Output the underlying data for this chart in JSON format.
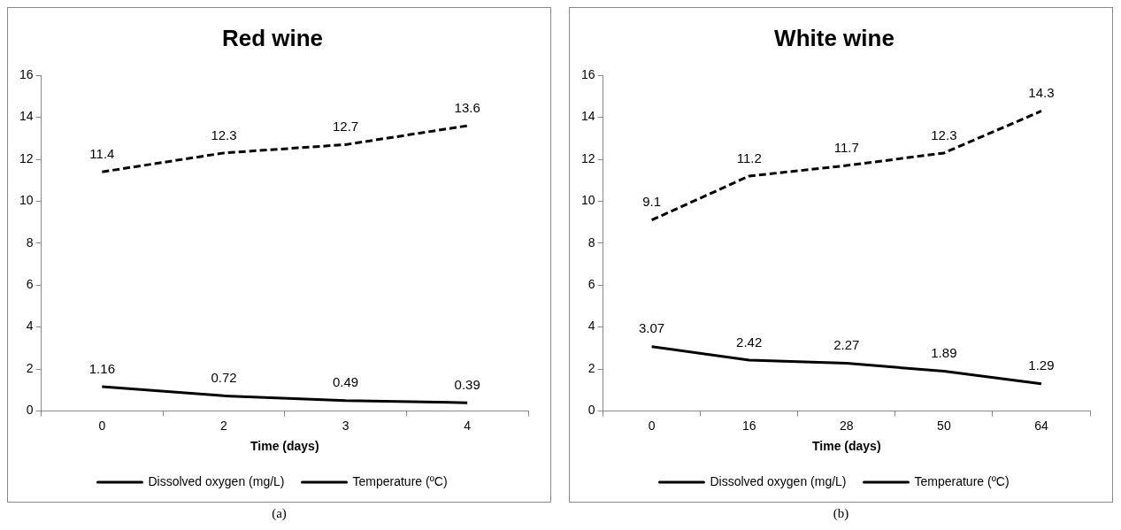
{
  "chart_data": [
    {
      "type": "line",
      "title": "Red wine",
      "xlabel": "Time (days)",
      "categories": [
        "0",
        "2",
        "3",
        "4"
      ],
      "series": [
        {
          "name": "Dissolved oxygen (mg/L)",
          "color": "#000000",
          "line_style": "solid",
          "values": [
            1.16,
            0.72,
            0.49,
            0.39
          ]
        },
        {
          "name": "Temperature (ºC)",
          "color": "#000000",
          "line_style": "dashed",
          "values": [
            11.4,
            12.3,
            12.7,
            13.6
          ]
        }
      ],
      "ylim": [
        0,
        16
      ],
      "yticks": [
        0,
        2,
        4,
        6,
        8,
        10,
        12,
        14,
        16
      ],
      "grid": false,
      "legend": "bottom",
      "marker": "none",
      "data_labels": true,
      "annotations": [
        "(a)"
      ]
    },
    {
      "type": "line",
      "title": "White wine",
      "xlabel": "Time (days)",
      "categories": [
        "0",
        "16",
        "28",
        "50",
        "64"
      ],
      "series": [
        {
          "name": "Dissolved oxygen (mg/L)",
          "color": "#000000",
          "line_style": "solid",
          "values": [
            3.07,
            2.42,
            2.27,
            1.89,
            1.29
          ]
        },
        {
          "name": "Temperature (ºC)",
          "color": "#000000",
          "line_style": "dashed",
          "values": [
            9.1,
            11.2,
            11.7,
            12.3,
            14.3
          ]
        }
      ],
      "ylim": [
        0,
        16
      ],
      "yticks": [
        0,
        2,
        4,
        6,
        8,
        10,
        12,
        14,
        16
      ],
      "grid": false,
      "legend": "bottom",
      "marker": "none",
      "data_labels": true,
      "annotations": [
        "(b)"
      ]
    }
  ]
}
